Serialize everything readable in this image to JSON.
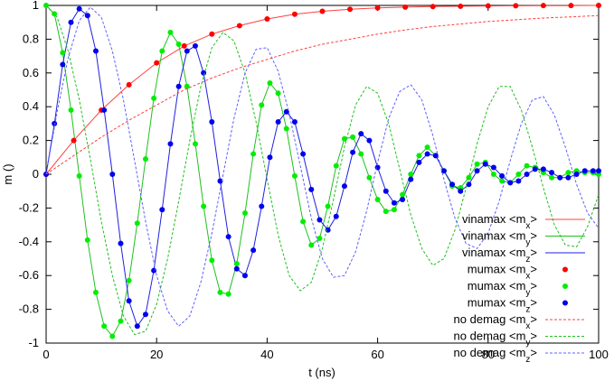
{
  "chart_data": {
    "type": "line",
    "xlabel": "t (ns)",
    "ylabel": "m ()",
    "xlim": [
      0,
      100
    ],
    "ylim": [
      -1,
      1
    ],
    "x_ticks": [
      "0",
      "20",
      "40",
      "60",
      "80",
      "100"
    ],
    "y_ticks": [
      "-1",
      "-0.8",
      "-0.6",
      "-0.4",
      "-0.2",
      "0",
      "0.2",
      "0.4",
      "0.6",
      "0.8",
      "1"
    ],
    "legend_position": "bottom-right",
    "grid": false,
    "series": [
      {
        "label": "vinamax <m",
        "sub": "x",
        "suffix": ">",
        "style": "line",
        "color": "#ff4040",
        "x": [
          0,
          5,
          10,
          15,
          20,
          25,
          30,
          35,
          40,
          45,
          50,
          55,
          60,
          65,
          70,
          75,
          80,
          85,
          90,
          95,
          100
        ],
        "y": [
          0,
          0.2,
          0.38,
          0.53,
          0.66,
          0.76,
          0.83,
          0.88,
          0.92,
          0.948,
          0.965,
          0.977,
          0.985,
          0.99,
          0.993,
          0.995,
          0.997,
          0.998,
          0.999,
          0.999,
          1.0
        ]
      },
      {
        "label": "vinamax <m",
        "sub": "y",
        "suffix": ">",
        "style": "line",
        "color": "#20c020",
        "x": [
          0,
          1.5,
          3,
          4.5,
          6,
          7.5,
          9,
          10.5,
          12,
          13.5,
          15,
          16.5,
          18,
          19.5,
          21,
          22.5,
          24,
          25.5,
          27,
          28.5,
          30,
          31.5,
          33,
          34.5,
          36,
          37.5,
          39,
          40.5,
          42,
          43.5,
          45,
          46.5,
          48,
          49.5,
          51,
          52.5,
          54,
          55.5,
          57,
          58.5,
          60,
          61.5,
          63,
          64.5,
          66,
          67.5,
          69,
          70.5,
          72,
          73.5,
          75,
          76.5,
          78,
          79.5,
          81,
          82.5,
          84,
          85.5,
          87,
          88.5,
          90,
          91.5,
          93,
          94.5,
          96,
          97.5,
          99,
          100
        ],
        "y": [
          1.0,
          0.95,
          0.72,
          0.38,
          -0.01,
          -0.39,
          -0.7,
          -0.9,
          -0.96,
          -0.87,
          -0.63,
          -0.29,
          0.09,
          0.45,
          0.73,
          0.84,
          0.77,
          0.52,
          0.18,
          -0.19,
          -0.51,
          -0.7,
          -0.71,
          -0.53,
          -0.23,
          0.12,
          0.41,
          0.54,
          0.48,
          0.27,
          -0.01,
          -0.28,
          -0.42,
          -0.38,
          -0.19,
          0.05,
          0.21,
          0.22,
          0.12,
          -0.02,
          -0.15,
          -0.22,
          -0.21,
          -0.12,
          0.0,
          0.11,
          0.16,
          0.11,
          0.02,
          -0.07,
          -0.08,
          -0.02,
          0.06,
          0.07,
          0.0,
          -0.04,
          -0.05,
          0.0,
          0.05,
          0.04,
          0.01,
          -0.02,
          -0.02,
          0.01,
          0.02,
          0.01,
          0.01,
          0.0
        ]
      },
      {
        "label": "vinamax <m",
        "sub": "z",
        "suffix": ">",
        "style": "line",
        "color": "#2020e0",
        "x": [
          0,
          1.5,
          3,
          4.5,
          6,
          7.5,
          9,
          10.5,
          12,
          13.5,
          15,
          16.5,
          18,
          19.5,
          21,
          22.5,
          24,
          25.5,
          27,
          28.5,
          30,
          31.5,
          33,
          34.5,
          36,
          37.5,
          39,
          40.5,
          42,
          43.5,
          45,
          46.5,
          48,
          49.5,
          51,
          52.5,
          54,
          55.5,
          57,
          58.5,
          60,
          61.5,
          63,
          64.5,
          66,
          67.5,
          69,
          70.5,
          72,
          73.5,
          75,
          76.5,
          78,
          79.5,
          81,
          82.5,
          84,
          85.5,
          87,
          88.5,
          90,
          91.5,
          93,
          94.5,
          96,
          97.5,
          99,
          100
        ],
        "y": [
          0.0,
          0.3,
          0.65,
          0.9,
          0.98,
          0.94,
          0.73,
          0.38,
          0.0,
          -0.41,
          -0.75,
          -0.9,
          -0.83,
          -0.57,
          -0.21,
          0.18,
          0.52,
          0.73,
          0.76,
          0.6,
          0.31,
          -0.04,
          -0.37,
          -0.56,
          -0.6,
          -0.45,
          -0.19,
          0.1,
          0.31,
          0.37,
          0.31,
          0.12,
          -0.09,
          -0.27,
          -0.33,
          -0.25,
          -0.07,
          0.13,
          0.24,
          0.2,
          0.04,
          -0.1,
          -0.17,
          -0.15,
          -0.03,
          0.07,
          0.12,
          0.11,
          0.02,
          -0.06,
          -0.1,
          -0.06,
          0.02,
          0.06,
          0.04,
          -0.01,
          -0.05,
          -0.04,
          0.0,
          0.03,
          0.03,
          0.01,
          -0.02,
          -0.02,
          0.0,
          0.02,
          0.02,
          0.02
        ]
      },
      {
        "label": "mumax <m",
        "sub": "x",
        "suffix": ">",
        "style": "points",
        "color": "#ff0000",
        "x": [
          0,
          5,
          10,
          15,
          20,
          25,
          30,
          35,
          40,
          45,
          50,
          55,
          60,
          65,
          70,
          75,
          80,
          85,
          90,
          95,
          100
        ],
        "y": [
          0,
          0.2,
          0.38,
          0.53,
          0.66,
          0.76,
          0.83,
          0.88,
          0.92,
          0.948,
          0.965,
          0.977,
          0.985,
          0.99,
          0.993,
          0.995,
          0.997,
          0.998,
          0.999,
          0.999,
          1.0
        ]
      },
      {
        "label": "mumax <m",
        "sub": "y",
        "suffix": ">",
        "style": "points",
        "color": "#00ee00",
        "x": [
          0,
          1.5,
          3,
          4.5,
          6,
          7.5,
          9,
          10.5,
          12,
          13.5,
          15,
          16.5,
          18,
          19.5,
          21,
          22.5,
          24,
          25.5,
          27,
          28.5,
          30,
          31.5,
          33,
          34.5,
          36,
          37.5,
          39,
          40.5,
          42,
          43.5,
          45,
          46.5,
          48,
          49.5,
          51,
          52.5,
          54,
          55.5,
          57,
          58.5,
          60,
          61.5,
          63,
          64.5,
          66,
          67.5,
          69,
          70.5,
          72,
          73.5,
          75,
          76.5,
          78,
          79.5,
          81,
          82.5,
          84,
          85.5,
          87,
          88.5,
          90,
          91.5,
          93,
          94.5,
          96,
          97.5,
          99,
          100
        ],
        "y": [
          1.0,
          0.95,
          0.72,
          0.38,
          -0.01,
          -0.39,
          -0.7,
          -0.9,
          -0.96,
          -0.87,
          -0.63,
          -0.29,
          0.09,
          0.45,
          0.73,
          0.84,
          0.77,
          0.52,
          0.18,
          -0.19,
          -0.51,
          -0.7,
          -0.71,
          -0.53,
          -0.23,
          0.12,
          0.41,
          0.54,
          0.48,
          0.27,
          -0.01,
          -0.28,
          -0.42,
          -0.38,
          -0.19,
          0.05,
          0.21,
          0.22,
          0.12,
          -0.02,
          -0.15,
          -0.22,
          -0.21,
          -0.12,
          0.0,
          0.11,
          0.16,
          0.11,
          0.02,
          -0.07,
          -0.08,
          -0.02,
          0.06,
          0.07,
          0.0,
          -0.04,
          -0.05,
          0.0,
          0.05,
          0.04,
          0.01,
          -0.02,
          -0.02,
          0.01,
          0.02,
          0.01,
          0.01,
          0.0
        ]
      },
      {
        "label": "mumax <m",
        "sub": "z",
        "suffix": ">",
        "style": "points",
        "color": "#0000ee",
        "x": [
          0,
          1.5,
          3,
          4.5,
          6,
          7.5,
          9,
          10.5,
          12,
          13.5,
          15,
          16.5,
          18,
          19.5,
          21,
          22.5,
          24,
          25.5,
          27,
          28.5,
          30,
          31.5,
          33,
          34.5,
          36,
          37.5,
          39,
          40.5,
          42,
          43.5,
          45,
          46.5,
          48,
          49.5,
          51,
          52.5,
          54,
          55.5,
          57,
          58.5,
          60,
          61.5,
          63,
          64.5,
          66,
          67.5,
          69,
          70.5,
          72,
          73.5,
          75,
          76.5,
          78,
          79.5,
          81,
          82.5,
          84,
          85.5,
          87,
          88.5,
          90,
          91.5,
          93,
          94.5,
          96,
          97.5,
          99,
          100
        ],
        "y": [
          0.0,
          0.3,
          0.65,
          0.9,
          0.98,
          0.94,
          0.73,
          0.38,
          0.0,
          -0.41,
          -0.75,
          -0.9,
          -0.83,
          -0.57,
          -0.21,
          0.18,
          0.52,
          0.73,
          0.76,
          0.6,
          0.31,
          -0.04,
          -0.37,
          -0.56,
          -0.6,
          -0.45,
          -0.19,
          0.1,
          0.31,
          0.37,
          0.31,
          0.12,
          -0.09,
          -0.27,
          -0.33,
          -0.25,
          -0.07,
          0.13,
          0.24,
          0.2,
          0.04,
          -0.1,
          -0.17,
          -0.15,
          -0.03,
          0.07,
          0.12,
          0.11,
          0.02,
          -0.06,
          -0.1,
          -0.06,
          0.02,
          0.06,
          0.04,
          -0.01,
          -0.05,
          -0.04,
          0.0,
          0.03,
          0.03,
          0.01,
          -0.02,
          -0.02,
          0.0,
          0.02,
          0.02,
          0.02
        ]
      },
      {
        "label": "no demag <m",
        "sub": "x",
        "suffix": ">",
        "style": "dashed",
        "color": "#ff4040",
        "x": [
          0,
          5,
          10,
          15,
          20,
          25,
          30,
          35,
          40,
          45,
          50,
          55,
          60,
          65,
          70,
          75,
          80,
          85,
          90,
          95,
          100
        ],
        "y": [
          0,
          0.11,
          0.22,
          0.32,
          0.41,
          0.5,
          0.57,
          0.63,
          0.68,
          0.73,
          0.77,
          0.8,
          0.83,
          0.855,
          0.875,
          0.89,
          0.905,
          0.915,
          0.925,
          0.932,
          0.94
        ]
      },
      {
        "label": "no demag <m",
        "sub": "y",
        "suffix": ">",
        "style": "dashed",
        "color": "#20c020",
        "x": [
          0,
          2,
          4,
          6,
          8,
          10,
          12,
          14,
          16,
          18,
          20,
          22,
          24,
          26,
          28,
          30,
          32,
          34,
          36,
          38,
          40,
          42,
          44,
          46,
          48,
          50,
          52,
          54,
          56,
          58,
          60,
          62,
          64,
          66,
          68,
          70,
          72,
          74,
          76,
          78,
          80,
          82,
          84,
          86,
          88,
          90,
          92,
          94,
          96,
          98,
          100
        ],
        "y": [
          1.0,
          0.93,
          0.73,
          0.44,
          0.09,
          -0.28,
          -0.6,
          -0.84,
          -0.95,
          -0.93,
          -0.77,
          -0.5,
          -0.16,
          0.2,
          0.52,
          0.75,
          0.84,
          0.79,
          0.6,
          0.31,
          -0.03,
          -0.36,
          -0.6,
          -0.69,
          -0.64,
          -0.44,
          -0.15,
          0.16,
          0.41,
          0.52,
          0.48,
          0.3,
          0.03,
          -0.24,
          -0.44,
          -0.54,
          -0.5,
          -0.33,
          -0.08,
          0.18,
          0.4,
          0.52,
          0.52,
          0.38,
          0.16,
          -0.08,
          -0.3,
          -0.42,
          -0.43,
          -0.31,
          -0.12
        ]
      },
      {
        "label": "no demag <m",
        "sub": "z",
        "suffix": ">",
        "style": "dashed",
        "color": "#6060ff",
        "x": [
          0,
          2,
          4,
          6,
          8,
          10,
          12,
          14,
          16,
          18,
          20,
          22,
          24,
          26,
          28,
          30,
          32,
          34,
          36,
          38,
          40,
          42,
          44,
          46,
          48,
          50,
          52,
          54,
          56,
          58,
          60,
          62,
          64,
          66,
          68,
          70,
          72,
          74,
          76,
          78,
          80,
          82,
          84,
          86,
          88,
          90,
          92,
          94,
          96,
          98,
          100
        ],
        "y": [
          0.0,
          0.37,
          0.69,
          0.91,
          0.99,
          0.93,
          0.73,
          0.44,
          0.08,
          -0.28,
          -0.6,
          -0.81,
          -0.9,
          -0.84,
          -0.64,
          -0.35,
          -0.01,
          0.33,
          0.6,
          0.74,
          0.75,
          0.61,
          0.36,
          0.05,
          -0.26,
          -0.5,
          -0.61,
          -0.6,
          -0.46,
          -0.22,
          0.07,
          0.33,
          0.49,
          0.53,
          0.44,
          0.23,
          -0.03,
          -0.26,
          -0.41,
          -0.44,
          -0.35,
          -0.16,
          0.08,
          0.3,
          0.44,
          0.46,
          0.35,
          0.16,
          -0.06,
          -0.23,
          -0.32
        ]
      }
    ]
  }
}
